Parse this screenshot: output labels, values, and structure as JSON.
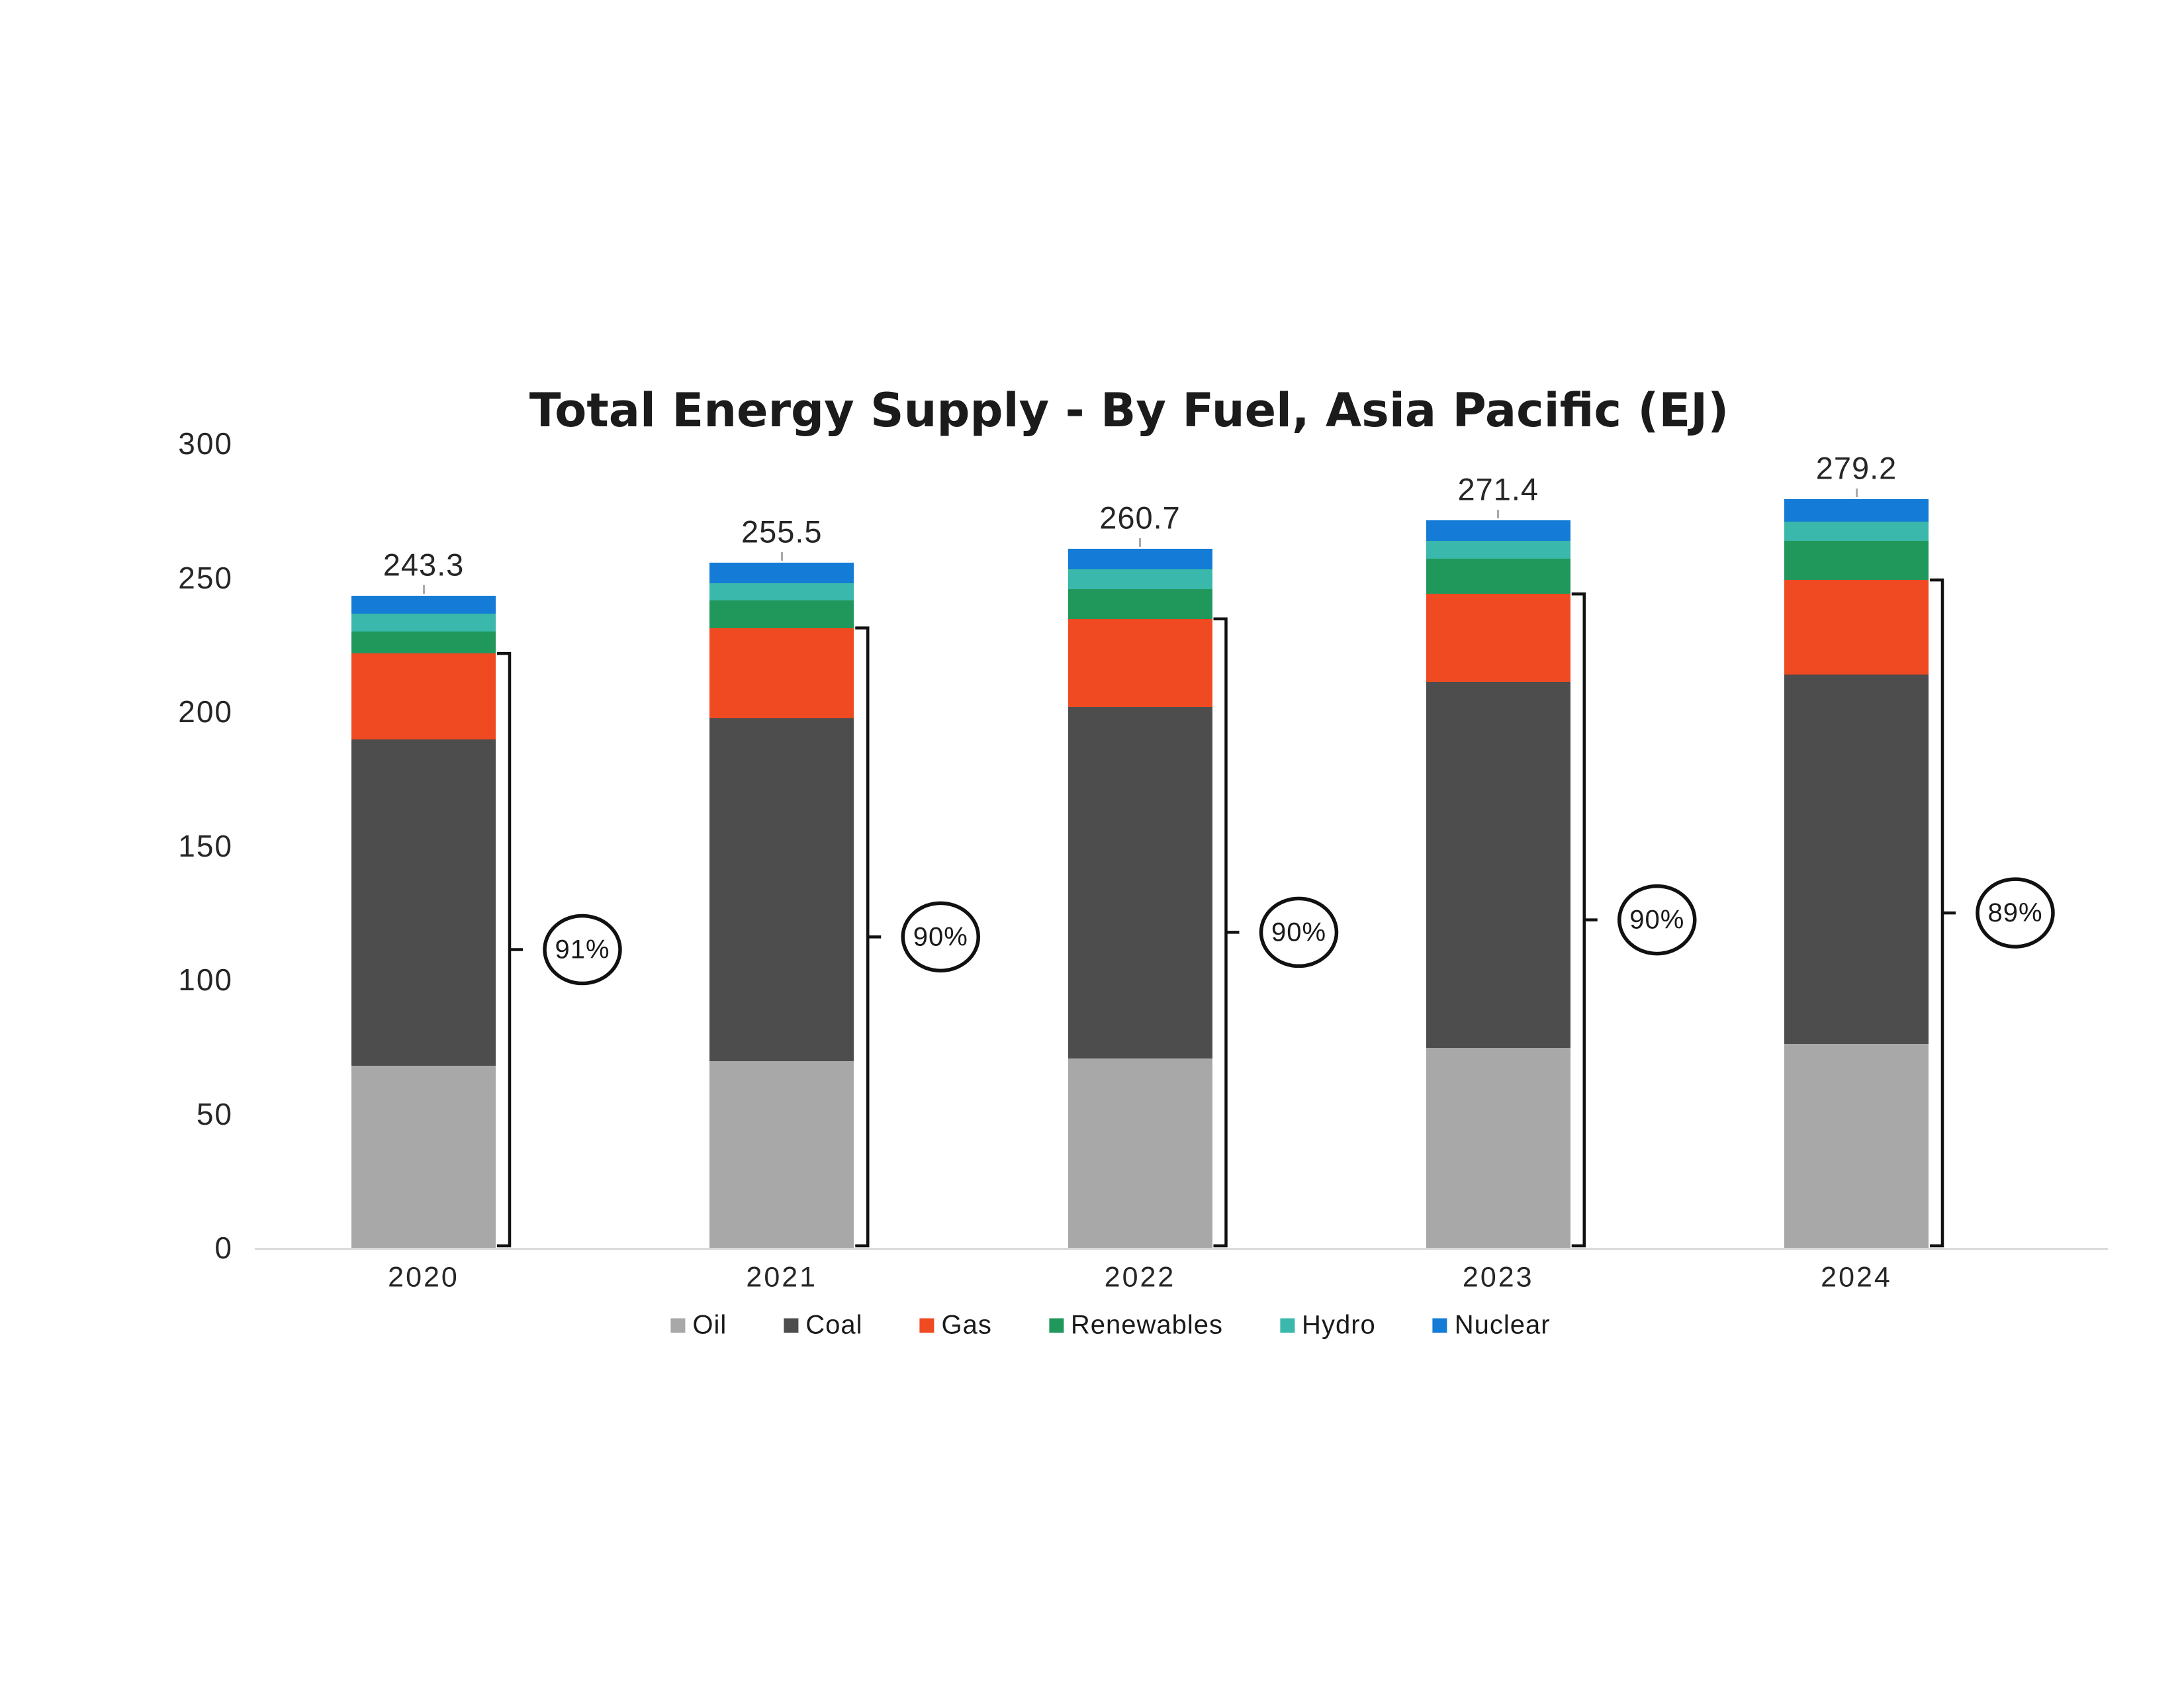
{
  "title": "Total Energy Supply - By Fuel, Asia Pacific (EJ)",
  "chart_data": {
    "type": "bar",
    "stacked": true,
    "title": "Total Energy Supply - By Fuel, Asia Pacific (EJ)",
    "categories": [
      "2020",
      "2021",
      "2022",
      "2023",
      "2024"
    ],
    "series": [
      {
        "name": "Oil",
        "color": "#a8a8a8",
        "values": [
          67.9,
          69.7,
          70.7,
          74.6,
          76.0
        ]
      },
      {
        "name": "Coal",
        "color": "#4d4d4d",
        "values": [
          121.7,
          127.9,
          131.1,
          136.5,
          137.8
        ]
      },
      {
        "name": "Gas",
        "color": "#f04a23",
        "values": [
          32.1,
          33.6,
          32.8,
          32.8,
          35.3
        ]
      },
      {
        "name": "Renewables",
        "color": "#21985b",
        "values": [
          8.2,
          10.2,
          11.0,
          13.1,
          14.6
        ]
      },
      {
        "name": "Hydro",
        "color": "#3ab8ab",
        "values": [
          6.6,
          6.6,
          7.6,
          6.7,
          7.2
        ]
      },
      {
        "name": "Nuclear",
        "color": "#147bd6",
        "values": [
          6.8,
          7.5,
          7.5,
          7.7,
          8.3
        ]
      }
    ],
    "totals": [
      "243.3",
      "255.5",
      "260.7",
      "271.4",
      "279.2"
    ],
    "fossil_share_labels": [
      "91%",
      "90%",
      "90%",
      "90%",
      "89%"
    ],
    "fossil_series": [
      "Oil",
      "Coal",
      "Gas"
    ],
    "xlabel": "",
    "ylabel": "",
    "ylim": [
      0,
      300
    ],
    "yticks": [
      "0",
      "50",
      "100",
      "150",
      "200",
      "250",
      "300"
    ],
    "grid": false,
    "legend_position": "bottom",
    "legend_entries": [
      "Oil",
      "Coal",
      "Gas",
      "Renewables",
      "Hydro",
      "Nuclear"
    ],
    "annotation_style": "bracket-with-circled-percentage",
    "bracket_color": "#111111",
    "axis_line_color": "#d9d9d9",
    "text_color": "#262626"
  }
}
